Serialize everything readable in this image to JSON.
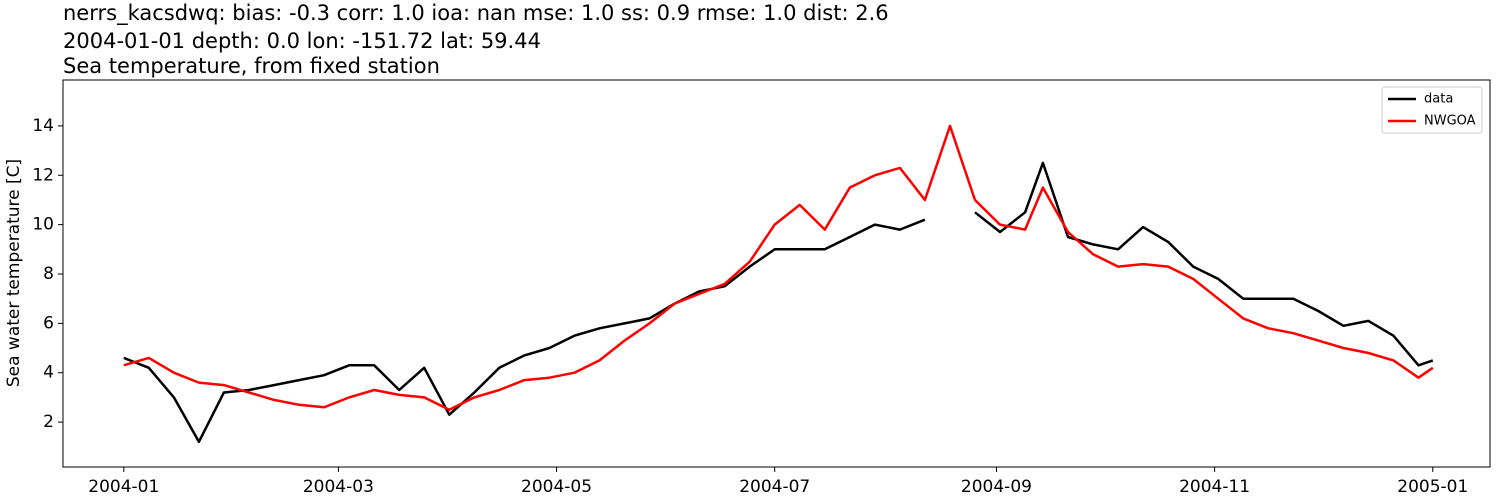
{
  "chart_data": {
    "type": "line",
    "title": [
      "nerrs_kacsdwq: bias: -0.3  corr: 1.0  ioa: nan  mse: 1.0  ss: 0.9  rmse: 1.0  dist: 2.6",
      "2004-01-01 depth: 0.0 lon: -151.72 lat: 59.44",
      "Sea temperature, from fixed station"
    ],
    "y_label": "Sea water temperature [C]",
    "x": [
      "2004-01-01",
      "2004-01-08",
      "2004-01-15",
      "2004-01-22",
      "2004-01-29",
      "2004-02-05",
      "2004-02-12",
      "2004-02-19",
      "2004-02-26",
      "2004-03-04",
      "2004-03-11",
      "2004-03-18",
      "2004-03-25",
      "2004-04-01",
      "2004-04-08",
      "2004-04-15",
      "2004-04-22",
      "2004-04-29",
      "2004-05-06",
      "2004-05-13",
      "2004-05-20",
      "2004-05-27",
      "2004-06-03",
      "2004-06-10",
      "2004-06-17",
      "2004-06-24",
      "2004-07-01",
      "2004-07-08",
      "2004-07-15",
      "2004-07-22",
      "2004-07-29",
      "2004-08-05",
      "2004-08-12",
      "2004-08-19",
      "2004-08-26",
      "2004-09-02",
      "2004-09-09",
      "2004-09-14",
      "2004-09-21",
      "2004-09-28",
      "2004-10-05",
      "2004-10-12",
      "2004-10-19",
      "2004-10-26",
      "2004-11-02",
      "2004-11-09",
      "2004-11-16",
      "2004-11-23",
      "2004-11-30",
      "2004-12-07",
      "2004-12-14",
      "2004-12-21",
      "2004-12-28",
      "2005-01-01"
    ],
    "series": [
      {
        "name": "data",
        "color": "#000000",
        "values": [
          4.6,
          4.2,
          3.0,
          1.2,
          3.2,
          3.3,
          3.5,
          3.7,
          3.9,
          4.3,
          4.3,
          3.3,
          4.2,
          2.3,
          3.2,
          4.2,
          4.7,
          5.0,
          5.5,
          5.8,
          6.0,
          6.2,
          6.8,
          7.3,
          7.5,
          8.3,
          9.0,
          9.0,
          9.0,
          9.5,
          10.0,
          9.8,
          10.2,
          null,
          10.5,
          9.7,
          10.5,
          12.5,
          9.5,
          9.2,
          9.0,
          9.9,
          9.3,
          8.3,
          7.8,
          7.0,
          7.0,
          7.0,
          6.5,
          5.9,
          6.1,
          5.5,
          4.3,
          4.5
        ]
      },
      {
        "name": "NWGOA",
        "color": "#ff0000",
        "values": [
          4.3,
          4.6,
          4.0,
          3.6,
          3.5,
          3.2,
          2.9,
          2.7,
          2.6,
          3.0,
          3.3,
          3.1,
          3.0,
          2.5,
          3.0,
          3.3,
          3.7,
          3.8,
          4.0,
          4.5,
          5.3,
          6.0,
          6.8,
          7.2,
          7.6,
          8.5,
          10.0,
          10.8,
          9.8,
          11.5,
          12.0,
          12.3,
          11.0,
          14.0,
          11.0,
          10.0,
          9.8,
          11.5,
          9.7,
          8.8,
          8.3,
          8.4,
          8.3,
          7.8,
          7.0,
          6.2,
          5.8,
          5.6,
          5.3,
          5.0,
          4.8,
          4.5,
          3.8,
          4.2
        ]
      }
    ],
    "xlim": [
      "2003-12-15",
      "2005-01-17"
    ],
    "xticks": [
      {
        "value": "2004-01-01",
        "label": "2004-01"
      },
      {
        "value": "2004-03-01",
        "label": "2004-03"
      },
      {
        "value": "2004-05-01",
        "label": "2004-05"
      },
      {
        "value": "2004-07-01",
        "label": "2004-07"
      },
      {
        "value": "2004-09-01",
        "label": "2004-09"
      },
      {
        "value": "2004-11-01",
        "label": "2004-11"
      },
      {
        "value": "2005-01-01",
        "label": "2005-01"
      }
    ],
    "ylim": [
      0.18,
      15.86
    ],
    "yticks": [
      2,
      4,
      6,
      8,
      10,
      12,
      14
    ],
    "legend": "upper right"
  }
}
